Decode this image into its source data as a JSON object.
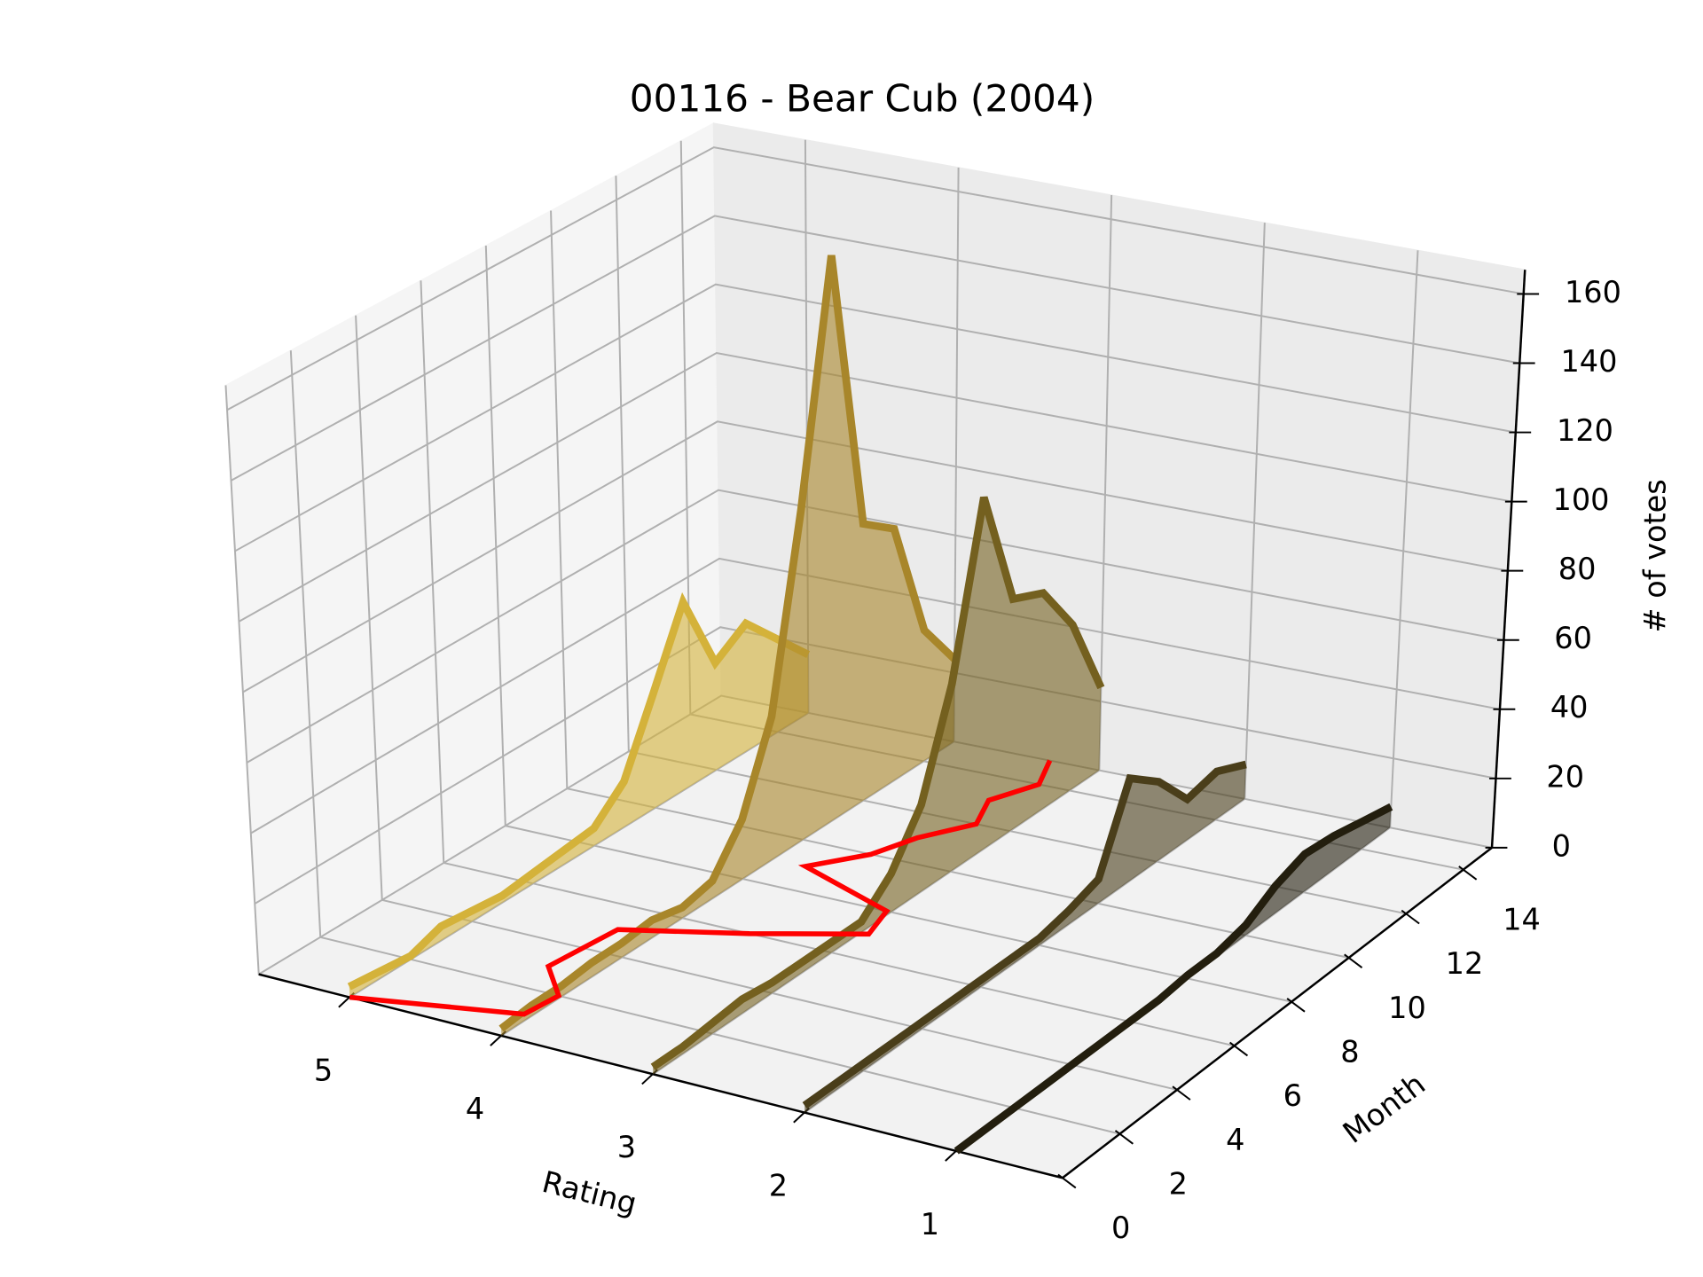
{
  "chart_data": {
    "type": "line3d",
    "title": "00116 - Bear Cub (2004)",
    "xlabel": "Rating",
    "ylabel": "Month",
    "zlabel": "# of votes",
    "x": [
      0,
      1,
      2,
      3,
      4,
      5,
      6,
      7,
      8,
      9,
      10,
      11,
      12,
      13,
      14,
      15
    ],
    "series": [
      {
        "rating": 5,
        "color": "#d4b23a",
        "values": [
          3,
          2,
          1,
          4,
          3,
          2,
          3,
          4,
          5,
          13,
          33,
          54,
          31,
          37,
          27,
          17
        ]
      },
      {
        "rating": 4,
        "color": "#a8862a",
        "values": [
          2,
          3,
          3,
          4,
          4,
          5,
          3,
          5,
          17,
          41,
          95,
          163,
          80,
          73,
          38,
          24
        ]
      },
      {
        "rating": 3,
        "color": "#74601f",
        "values": [
          2,
          2,
          3,
          4,
          3,
          3,
          3,
          3,
          11,
          25,
          54,
          102,
          67,
          63,
          48,
          24
        ]
      },
      {
        "rating": 2,
        "color": "#4a3e1a",
        "values": [
          2,
          2,
          2,
          2,
          2,
          2,
          2,
          2,
          2,
          4,
          7,
          30,
          23,
          12,
          14,
          10
        ]
      },
      {
        "rating": 1,
        "color": "#231e0e",
        "values": [
          0,
          0,
          0,
          0,
          0,
          0,
          0,
          0,
          1,
          1,
          3,
          8,
          11,
          10,
          8,
          6
        ]
      }
    ],
    "mean_rating": {
      "color": "#ff0000",
      "values": [
        5.0,
        4.05,
        4.02,
        4.29,
        4.26,
        4.23,
        3.55,
        2.95,
        3.03,
        3.78,
        3.54,
        3.43,
        3.23,
        3.35,
        3.21,
        3.34
      ]
    },
    "xlim": [
      0.3,
      5.6
    ],
    "x_inverted": true,
    "xticks": [
      1,
      2,
      3,
      4,
      5
    ],
    "ylim": [
      0,
      15
    ],
    "yticks": [
      0,
      2,
      4,
      6,
      8,
      10,
      12,
      14
    ],
    "zlim": [
      0,
      167
    ],
    "zticks": [
      0,
      20,
      40,
      60,
      80,
      100,
      120,
      140,
      160
    ],
    "grid": true,
    "fill": true
  }
}
